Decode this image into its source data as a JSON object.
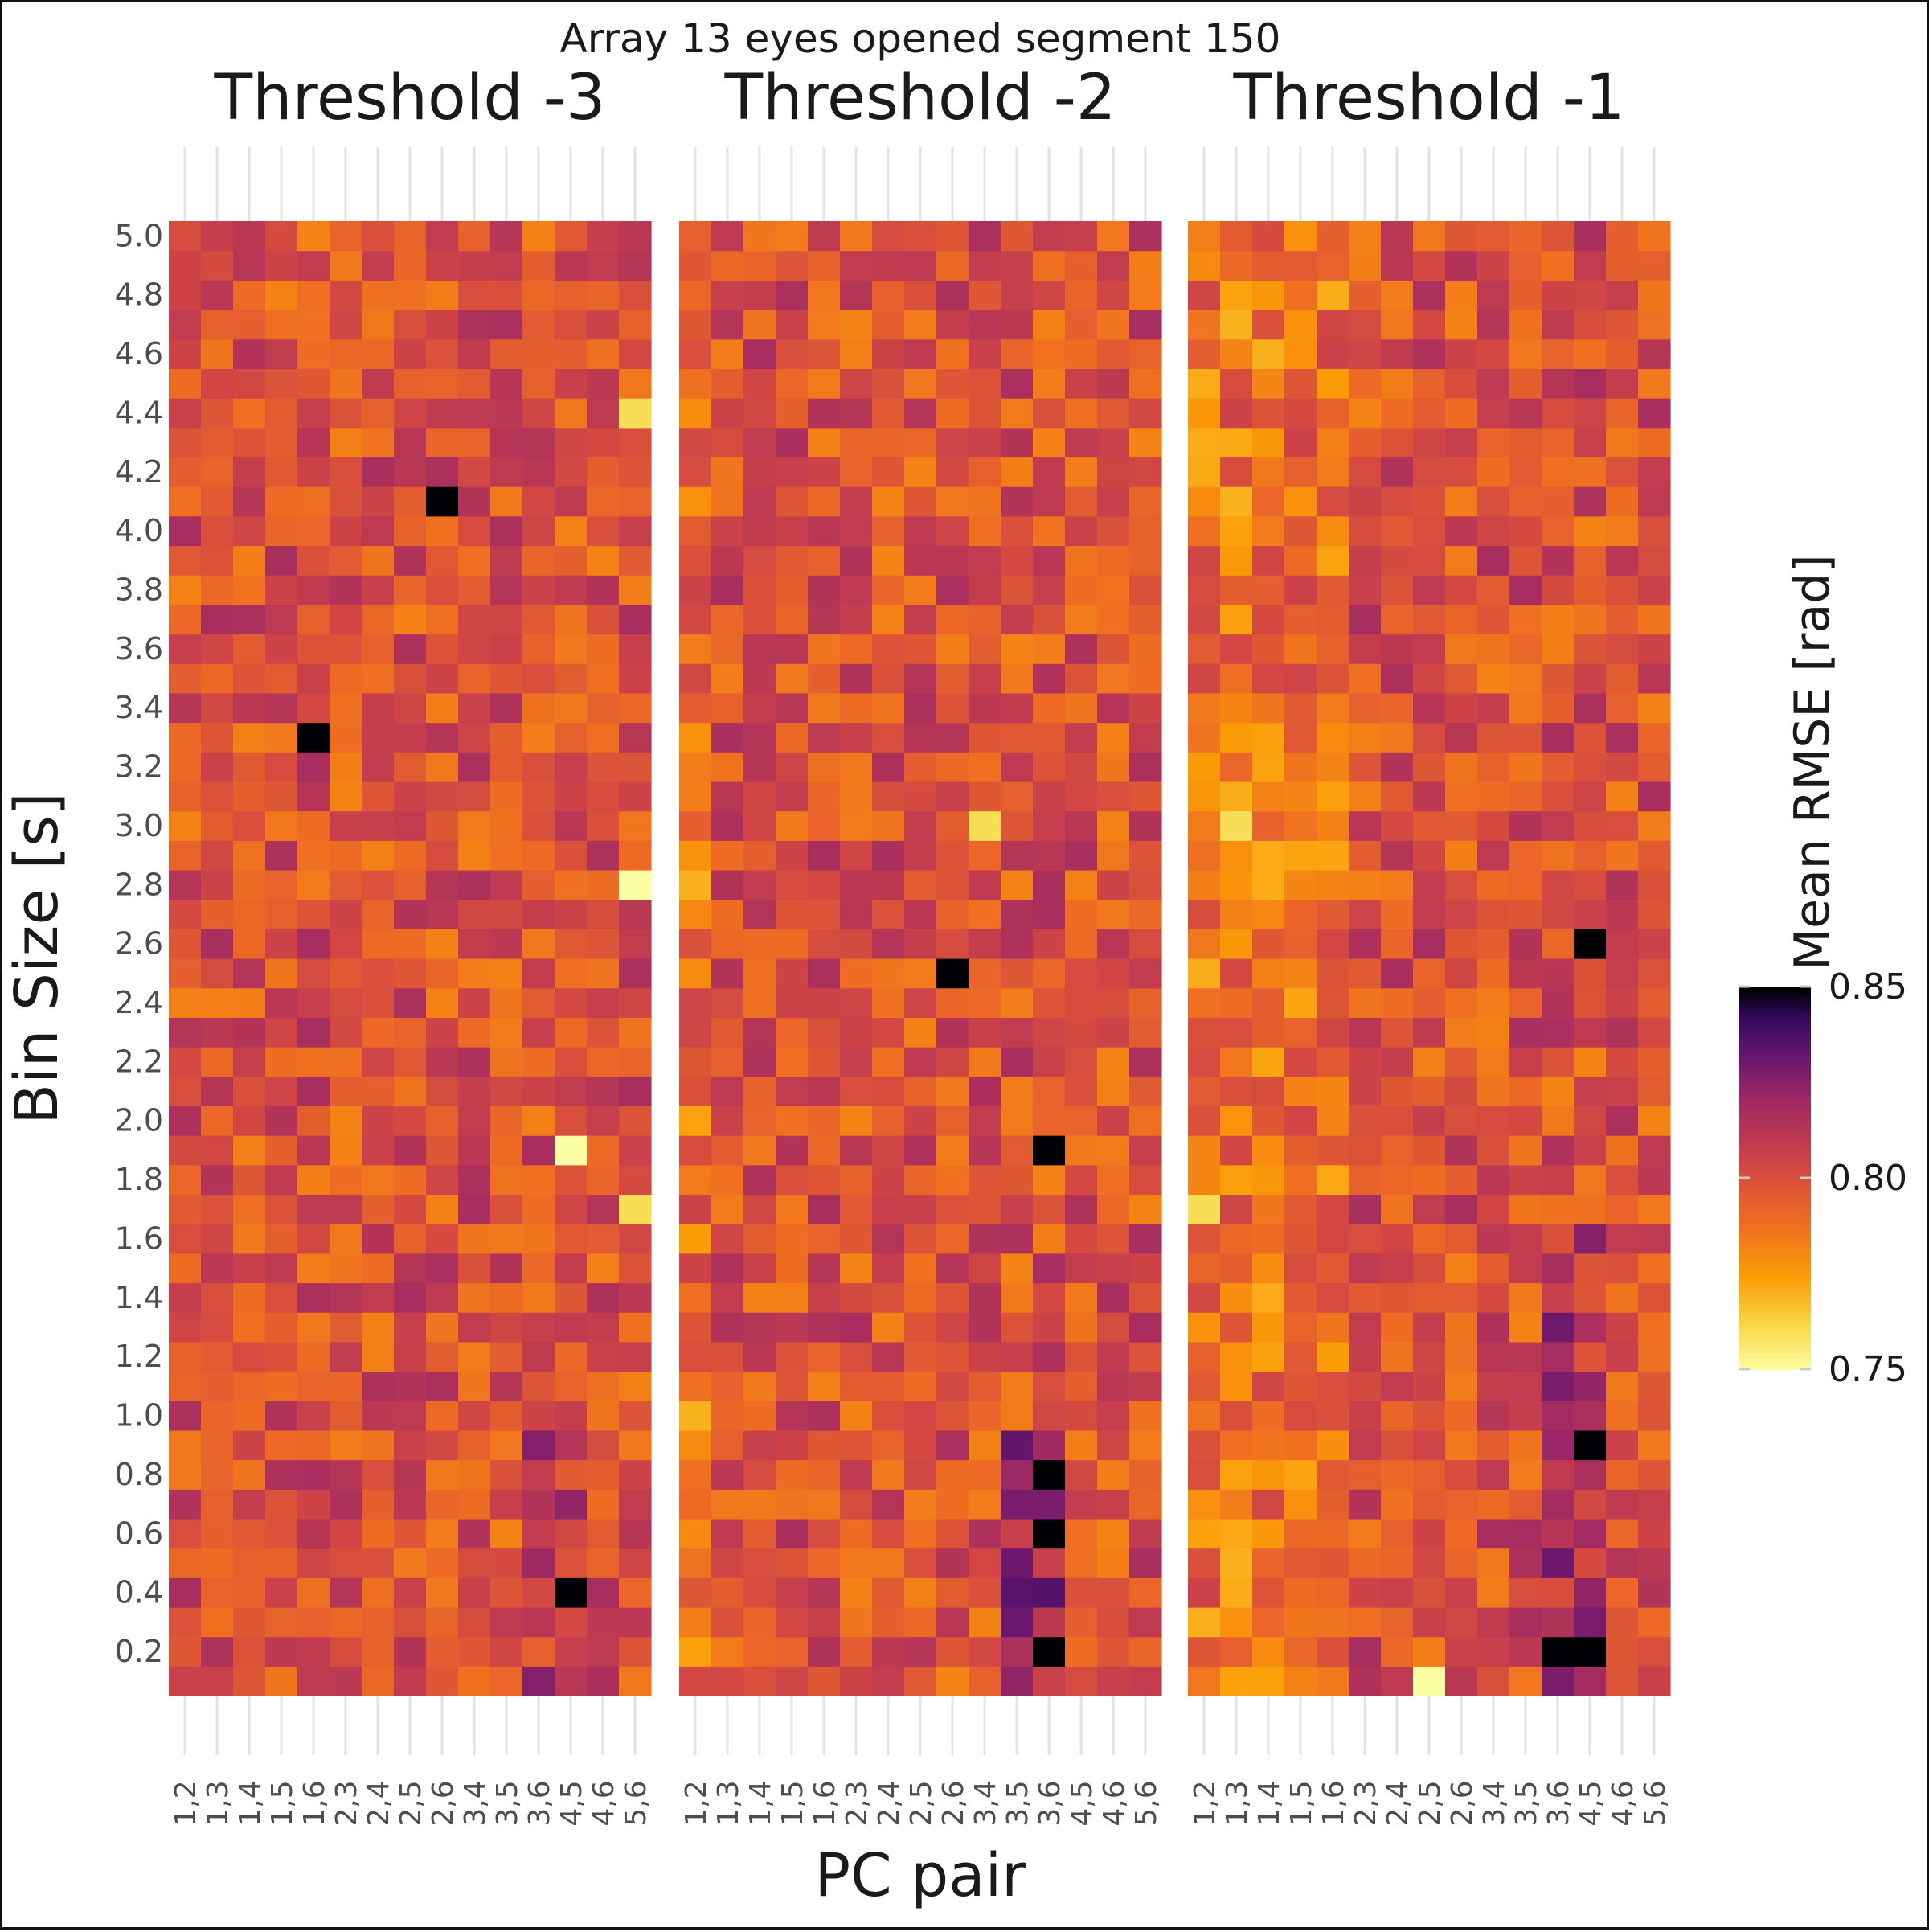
{
  "chart_data": {
    "type": "heatmap",
    "title": "Array 13 eyes opened segment 150",
    "xlabel": "PC pair",
    "ylabel": "Bin Size [s]",
    "colorbar": {
      "label": "Mean RMSE [rad]",
      "range": [
        0.75,
        0.85
      ],
      "ticks": [
        "0.85",
        "0.80",
        "0.75"
      ],
      "colormap": "inferno"
    },
    "x_categories": [
      "1,2",
      "1,3",
      "1,4",
      "1,5",
      "1,6",
      "2,3",
      "2,4",
      "2,5",
      "2,6",
      "3,4",
      "3,5",
      "3,6",
      "4,5",
      "4,6",
      "5,6"
    ],
    "y_ticks": [
      "0.2",
      "0.4",
      "0.6",
      "0.8",
      "1.0",
      "1.2",
      "1.4",
      "1.6",
      "1.8",
      "2.0",
      "2.2",
      "2.4",
      "2.6",
      "2.8",
      "3.0",
      "3.2",
      "3.4",
      "3.6",
      "3.8",
      "4.0",
      "4.2",
      "4.4",
      "4.6",
      "4.8",
      "5.0"
    ],
    "y_range": [
      0.1,
      5.0
    ],
    "y_step": 0.1,
    "grid": true,
    "panels": [
      {
        "title": "Threshold -3",
        "notable_cells": [
          {
            "x": "4,5",
            "y": 0.4,
            "value": 0.85
          },
          {
            "x": "2,6",
            "y": 4.1,
            "value": 0.85
          },
          {
            "x": "1,6",
            "y": 3.3,
            "value": 0.85
          },
          {
            "x": "5,6",
            "y": 2.8,
            "value": 0.75
          },
          {
            "x": "4,5",
            "y": 1.9,
            "value": 0.75
          },
          {
            "x": "5,6",
            "y": 1.7,
            "value": 0.76
          },
          {
            "x": "5,6",
            "y": 4.4,
            "value": 0.76
          }
        ]
      },
      {
        "title": "Threshold -2",
        "notable_cells": [
          {
            "x": "3,6",
            "y": 0.2,
            "value": 0.85
          },
          {
            "x": "3,6",
            "y": 0.6,
            "value": 0.85
          },
          {
            "x": "3,6",
            "y": 0.8,
            "value": 0.85
          },
          {
            "x": "3,6",
            "y": 1.9,
            "value": 0.85
          },
          {
            "x": "2,6",
            "y": 2.5,
            "value": 0.85
          },
          {
            "x": "3,4",
            "y": 3.0,
            "value": 0.76
          }
        ]
      },
      {
        "title": "Threshold -1",
        "notable_cells": [
          {
            "x": "3,6",
            "y": 0.2,
            "value": 0.85
          },
          {
            "x": "4,5",
            "y": 0.2,
            "value": 0.85
          },
          {
            "x": "4,5",
            "y": 0.9,
            "value": 0.85
          },
          {
            "x": "4,5",
            "y": 2.6,
            "value": 0.85
          },
          {
            "x": "2,5",
            "y": 0.1,
            "value": 0.75
          },
          {
            "x": "1,3",
            "y": 3.0,
            "value": 0.76
          },
          {
            "x": "1,2",
            "y": 1.7,
            "value": 0.76
          }
        ]
      }
    ]
  }
}
